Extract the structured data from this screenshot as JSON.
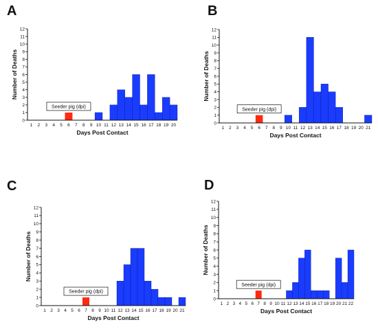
{
  "chart_data": [
    {
      "panel": "A",
      "type": "bar",
      "xlabel": "Days Post Contact",
      "ylabel": "Number of Deaths",
      "ylim": [
        0,
        12
      ],
      "categories": [
        "1",
        "2",
        "3",
        "4",
        "5",
        "6",
        "7",
        "8",
        "9",
        "10",
        "11",
        "12",
        "13",
        "14",
        "15",
        "16",
        "17",
        "18",
        "19",
        "20"
      ],
      "values": [
        0,
        0,
        0,
        0,
        0,
        0,
        0,
        0,
        0,
        1,
        0,
        2,
        4,
        3,
        6,
        2,
        6,
        1,
        3,
        2
      ],
      "seeder": {
        "label": "Seeder pig (dpi)",
        "day": 6,
        "value": 1,
        "color": "#ff2a10"
      },
      "bar_color": "#1a3cff"
    },
    {
      "panel": "B",
      "type": "bar",
      "xlabel": "Days Post Contact",
      "ylabel": "Number of Deaths",
      "ylim": [
        0,
        12
      ],
      "categories": [
        "1",
        "2",
        "3",
        "4",
        "5",
        "6",
        "7",
        "8",
        "9",
        "10",
        "11",
        "12",
        "13",
        "14",
        "15",
        "16",
        "17",
        "18",
        "19",
        "20",
        "21"
      ],
      "values": [
        0,
        0,
        0,
        0,
        0,
        0,
        0,
        0,
        0,
        1,
        0,
        2,
        11,
        4,
        5,
        4,
        2,
        0,
        0,
        0,
        1
      ],
      "seeder": {
        "label": "Seeder pig (dpi)",
        "day": 6,
        "value": 1,
        "color": "#ff2a10"
      },
      "bar_color": "#1a3cff"
    },
    {
      "panel": "C",
      "type": "bar",
      "xlabel": "Days Post Contact",
      "ylabel": "Number of Deaths",
      "ylim": [
        0,
        12
      ],
      "categories": [
        "1",
        "2",
        "3",
        "4",
        "5",
        "6",
        "7",
        "8",
        "9",
        "10",
        "11",
        "12",
        "13",
        "14",
        "15",
        "16",
        "17",
        "18",
        "19",
        "20",
        "21"
      ],
      "values": [
        0,
        0,
        0,
        0,
        0,
        0,
        0,
        0,
        0,
        0,
        0,
        3,
        5,
        7,
        7,
        3,
        2,
        1,
        1,
        0,
        1
      ],
      "seeder": {
        "label": "Seeder pig (dpi)",
        "day": 7,
        "value": 1,
        "color": "#ff2a10"
      },
      "bar_color": "#1a3cff"
    },
    {
      "panel": "D",
      "type": "bar",
      "xlabel": "Days Post Contact",
      "ylabel": "Number of Deaths",
      "ylim": [
        0,
        12
      ],
      "categories": [
        "1",
        "2",
        "3",
        "4",
        "5",
        "6",
        "7",
        "8",
        "9",
        "10",
        "11",
        "12",
        "13",
        "14",
        "15",
        "16",
        "17",
        "18",
        "19",
        "20",
        "21",
        "22"
      ],
      "values": [
        0,
        0,
        0,
        0,
        0,
        0,
        0,
        0,
        0,
        0,
        0,
        1,
        2,
        5,
        6,
        1,
        1,
        1,
        0,
        5,
        2,
        6
      ],
      "seeder": {
        "label": "Seeder pig (dpi)",
        "day": 7,
        "value": 1,
        "color": "#ff2a10"
      },
      "bar_color": "#1a3cff"
    }
  ]
}
